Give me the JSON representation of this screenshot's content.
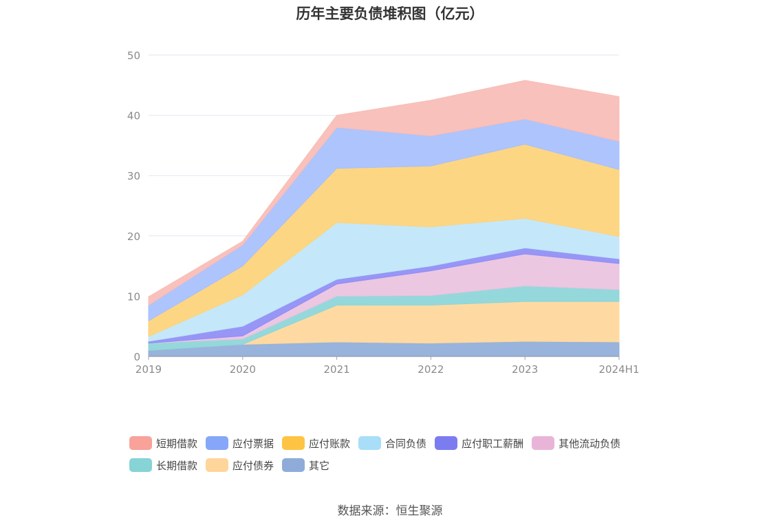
{
  "title": "历年主要负债堆积图（亿元）",
  "source": "数据来源：恒生聚源",
  "chart_data": {
    "type": "area",
    "stacked": true,
    "x": [
      "2019",
      "2020",
      "2021",
      "2022",
      "2023",
      "2024H1"
    ],
    "ylim": [
      0,
      50
    ],
    "yticks": [
      0,
      10,
      20,
      30,
      40,
      50
    ],
    "grid": true,
    "legend_position": "bottom",
    "series": [
      {
        "name": "其它",
        "color": "#8facd9",
        "values": [
          1.0,
          2.0,
          2.4,
          2.2,
          2.5,
          2.4
        ]
      },
      {
        "name": "应付债券",
        "color": "#fed79a",
        "values": [
          0.0,
          0.0,
          6.1,
          6.3,
          6.6,
          6.7
        ]
      },
      {
        "name": "长期借款",
        "color": "#8cd5d8",
        "values": [
          1.2,
          0.9,
          1.5,
          1.6,
          2.6,
          2.0
        ]
      },
      {
        "name": "其他流动负债",
        "color": "#eac2df",
        "values": [
          0.0,
          0.5,
          2.0,
          4.1,
          5.3,
          4.3
        ]
      },
      {
        "name": "应付职工薪酬",
        "color": "#8e8df5",
        "values": [
          0.3,
          1.6,
          0.8,
          0.8,
          1.0,
          0.8
        ]
      },
      {
        "name": "合同负债",
        "color": "#bfe6f9",
        "values": [
          0.8,
          5.2,
          9.4,
          6.5,
          4.9,
          3.7
        ]
      },
      {
        "name": "应付账款",
        "color": "#fdd27a",
        "values": [
          2.6,
          4.8,
          9.0,
          10.1,
          12.3,
          11.1
        ]
      },
      {
        "name": "应付票据",
        "color": "#a7bffc",
        "values": [
          2.6,
          3.5,
          6.8,
          5.0,
          4.2,
          4.7
        ]
      },
      {
        "name": "短期借款",
        "color": "#f9bcb6",
        "values": [
          1.4,
          0.6,
          2.0,
          5.9,
          6.4,
          7.4
        ]
      }
    ]
  },
  "legend": [
    {
      "name": "短期借款",
      "color": "#f8a29a"
    },
    {
      "name": "应付票据",
      "color": "#86a6f9"
    },
    {
      "name": "应付账款",
      "color": "#fdc443"
    },
    {
      "name": "合同负债",
      "color": "#a8def7"
    },
    {
      "name": "应付职工薪酬",
      "color": "#7c7cf1"
    },
    {
      "name": "其他流动负债",
      "color": "#e8b5d8"
    },
    {
      "name": "长期借款",
      "color": "#86d4d5"
    },
    {
      "name": "应付债券",
      "color": "#fed59a"
    },
    {
      "name": "其它",
      "color": "#8facd9"
    }
  ]
}
